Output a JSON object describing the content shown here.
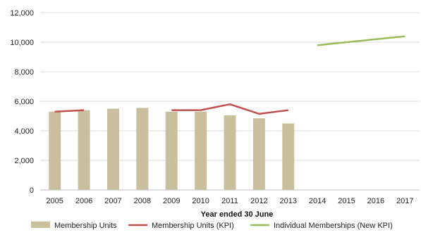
{
  "chart_data": {
    "type": "bar",
    "title": "",
    "xlabel": "Year ended 30 June",
    "ylabel": "",
    "ylim": [
      0,
      12000
    ],
    "yticks": [
      0,
      2000,
      4000,
      6000,
      8000,
      10000,
      12000
    ],
    "ytick_labels": [
      "0",
      "2,000",
      "4,000",
      "6,000",
      "8,000",
      "10,000",
      "12,000"
    ],
    "categories": [
      "2005",
      "2006",
      "2007",
      "2008",
      "2009",
      "2010",
      "2011",
      "2012",
      "2013",
      "2014",
      "2015",
      "2016",
      "2017"
    ],
    "grid": true,
    "legend_position": "bottom",
    "series": [
      {
        "name": "Membership Units",
        "kind": "bar",
        "color": "#c9bf9c",
        "values": [
          5300,
          5400,
          5500,
          5550,
          5300,
          5300,
          5050,
          4850,
          4500,
          null,
          null,
          null,
          null
        ]
      },
      {
        "name": "Membership Units (KPI)",
        "kind": "line",
        "color": "#c0504d",
        "values": [
          5300,
          5400,
          null,
          null,
          5400,
          5400,
          5800,
          5150,
          5400,
          null,
          null,
          null,
          null
        ]
      },
      {
        "name": "Individual Memberships (New KPI)",
        "kind": "line",
        "color": "#9bbb59",
        "values": [
          null,
          null,
          null,
          null,
          null,
          null,
          null,
          null,
          null,
          9800,
          10000,
          10200,
          10400
        ]
      }
    ]
  }
}
